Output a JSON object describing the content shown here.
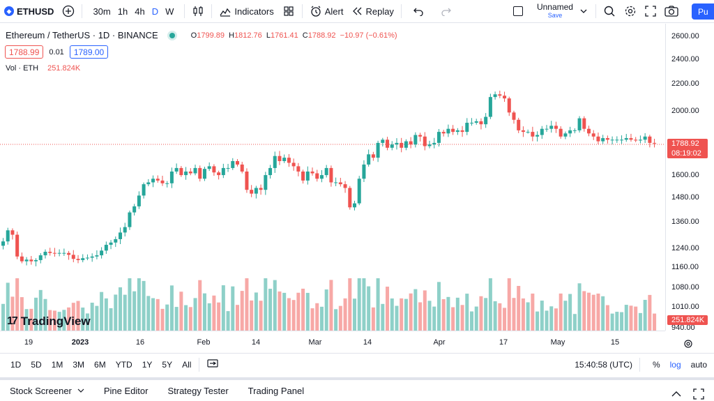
{
  "topbar": {
    "symbol": "ETHUSD",
    "intervals": [
      "30m",
      "1h",
      "4h",
      "D",
      "W"
    ],
    "active_interval": "D",
    "indicators_label": "Indicators",
    "alert_label": "Alert",
    "replay_label": "Replay",
    "layout_name": "Unnamed",
    "layout_save": "Save",
    "publish_label": "Pu"
  },
  "legend": {
    "title": "Ethereum / TetherUS · 1D · BINANCE",
    "open_label": "O",
    "open": "1799.89",
    "high_label": "H",
    "high": "1812.76",
    "low_label": "L",
    "low": "1761.41",
    "close_label": "C",
    "close": "1788.92",
    "change": "−10.97 (−0.61%)",
    "bid": "1788.99",
    "spread": "0.01",
    "ask": "1789.00",
    "volume_label": "Vol · ETH",
    "volume_value": "251.824K"
  },
  "brand": {
    "name": "TradingView",
    "mark": "17"
  },
  "price_scale": {
    "labels": [
      "2600.00",
      "2400.00",
      "2200.00",
      "2000.00",
      "1600.00",
      "1480.00",
      "1360.00",
      "1240.00",
      "1160.00",
      "1080.00",
      "1010.00",
      "940.00"
    ],
    "last_price": "1788.92",
    "countdown": "08:19:02",
    "volume_tag": "251.824K"
  },
  "time_axis": {
    "labels": [
      "19",
      "2023",
      "16",
      "Feb",
      "14",
      "Mar",
      "14",
      "Apr",
      "17",
      "May",
      "15"
    ]
  },
  "colors": {
    "up": "#26a69a",
    "down": "#ef5350",
    "up_vol": "#8ed0c8",
    "down_vol": "#f7a8a6",
    "accent": "#2962ff"
  },
  "chart_data": {
    "type": "candlestick",
    "symbol": "ETHUSDT",
    "scale": "log",
    "x_start": "2022-12-11",
    "x_end": "2023-05-27",
    "close": [
      1270,
      1320,
      1300,
      1205,
      1185,
      1192,
      1185,
      1190,
      1210,
      1225,
      1220,
      1218,
      1220,
      1220,
      1212,
      1195,
      1190,
      1198,
      1200,
      1205,
      1210,
      1230,
      1255,
      1265,
      1280,
      1310,
      1335,
      1405,
      1435,
      1490,
      1550,
      1560,
      1580,
      1570,
      1555,
      1555,
      1620,
      1640,
      1600,
      1620,
      1610,
      1640,
      1580,
      1635,
      1650,
      1615,
      1600,
      1640,
      1640,
      1680,
      1660,
      1620,
      1520,
      1500,
      1530,
      1520,
      1600,
      1640,
      1710,
      1680,
      1700,
      1670,
      1650,
      1620,
      1570,
      1620,
      1610,
      1580,
      1600,
      1640,
      1560,
      1560,
      1550,
      1530,
      1430,
      1450,
      1580,
      1660,
      1720,
      1700,
      1790,
      1810,
      1760,
      1780,
      1790,
      1760,
      1800,
      1780,
      1840,
      1830,
      1770,
      1780,
      1790,
      1860,
      1850,
      1880,
      1860,
      1870,
      1860,
      1920,
      1920,
      1930,
      1910,
      1960,
      2100,
      2120,
      2110,
      2090,
      1990,
      1940,
      1870,
      1860,
      1860,
      1830,
      1840,
      1880,
      1880,
      1900,
      1880,
      1830,
      1850,
      1870,
      1870,
      1950,
      1880,
      1850,
      1830,
      1800,
      1820,
      1810,
      1810,
      1810,
      1810,
      1820,
      1810,
      1805,
      1810,
      1830,
      1790,
      1788.92
    ],
    "volume_unit": "ETH",
    "last_volume": 251824
  },
  "rangebar": {
    "ranges": [
      "1D",
      "5D",
      "1M",
      "3M",
      "6M",
      "YTD",
      "1Y",
      "5Y",
      "All"
    ],
    "time": "15:40:58 (UTC)",
    "percent": "%",
    "log": "log",
    "auto": "auto"
  },
  "panels": [
    "Stock Screener",
    "Pine Editor",
    "Strategy Tester",
    "Trading Panel"
  ]
}
